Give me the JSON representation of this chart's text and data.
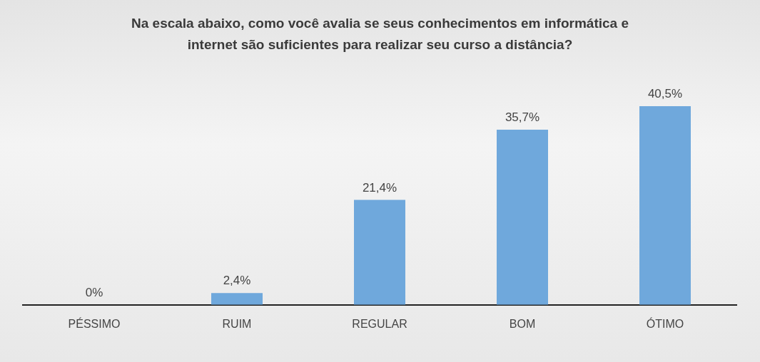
{
  "chart_data": {
    "type": "bar",
    "title": "Na escala abaixo, como você avalia se seus conhecimentos em informática e internet são suficientes para realizar seu curso a distância?",
    "categories": [
      "PÉSSIMO",
      "RUIM",
      "REGULAR",
      "BOM",
      "ÓTIMO"
    ],
    "values": [
      0,
      2.4,
      21.4,
      35.7,
      40.5
    ],
    "value_labels": [
      "0%",
      "2,4%",
      "21,4%",
      "35,7%",
      "40,5%"
    ],
    "color": "#6fa8dc"
  }
}
